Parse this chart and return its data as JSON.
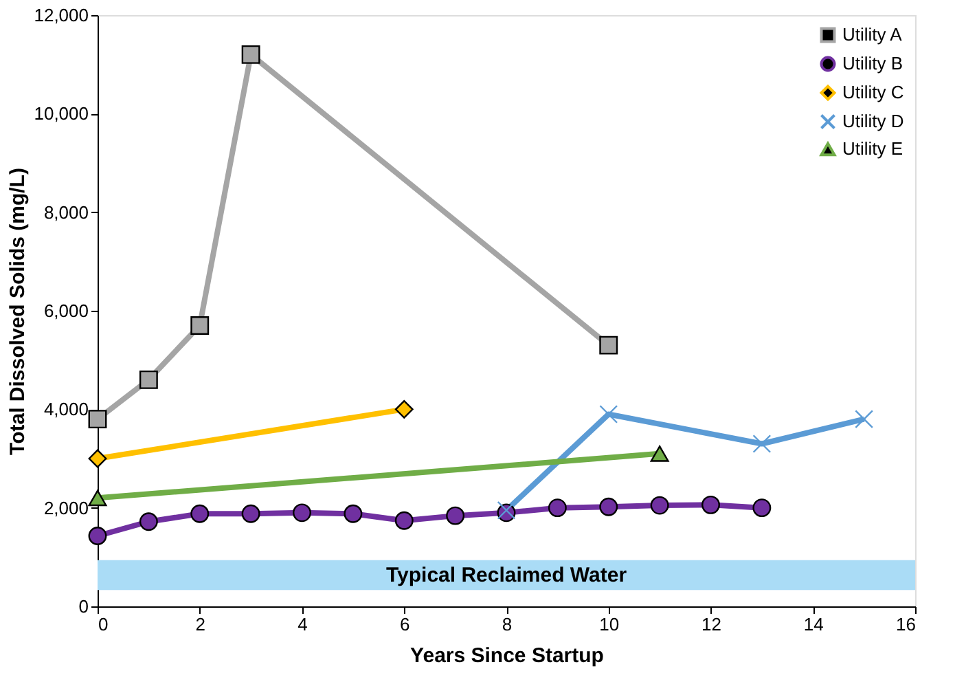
{
  "chart_data": {
    "type": "line",
    "xlabel": "Years Since Startup",
    "ylabel": "Total Dissolved Solids (mg/L)",
    "xlim": [
      0,
      16
    ],
    "xticks": [
      0,
      2,
      4,
      6,
      8,
      10,
      12,
      14,
      16
    ],
    "ylim": [
      0,
      12000
    ],
    "yticks": [
      {
        "value": 0,
        "label": "0"
      },
      {
        "value": 2000,
        "label": "2,000"
      },
      {
        "value": 4000,
        "label": "4,000"
      },
      {
        "value": 6000,
        "label": "6,000"
      },
      {
        "value": 8000,
        "label": "8,000"
      },
      {
        "value": 10000,
        "label": "10,000"
      },
      {
        "value": 12000,
        "label": "12,000"
      }
    ],
    "grid": false,
    "legend": "top right",
    "bands": [
      {
        "axis": "y",
        "from": 330,
        "to": 940,
        "label": "Typical Reclaimed Water",
        "color": "#aadcf6"
      }
    ],
    "series": [
      {
        "name": "Utility A",
        "color": "#a5a5a5",
        "marker": "square",
        "x": [
          0,
          1,
          2,
          3,
          10
        ],
        "values": [
          3800,
          4600,
          5700,
          11200,
          5300
        ]
      },
      {
        "name": "Utility B",
        "color": "#7030a0",
        "marker": "circle",
        "x": [
          0,
          1,
          2,
          3,
          4,
          5,
          6,
          7,
          8,
          9,
          10,
          11,
          12,
          13
        ],
        "values": [
          1430,
          1720,
          1880,
          1880,
          1900,
          1880,
          1740,
          1840,
          1900,
          2000,
          2020,
          2050,
          2060,
          2000
        ]
      },
      {
        "name": "Utility C",
        "color": "#ffc000",
        "marker": "diamond",
        "x": [
          0,
          6
        ],
        "values": [
          3000,
          4000
        ]
      },
      {
        "name": "Utility D",
        "color": "#5b9bd5",
        "marker": "cross",
        "x": [
          8,
          10,
          13,
          15
        ],
        "values": [
          1950,
          3900,
          3300,
          3800
        ]
      },
      {
        "name": "Utility E",
        "color": "#70ad47",
        "marker": "triangle",
        "x": [
          0,
          11
        ],
        "values": [
          2200,
          3100
        ]
      }
    ]
  }
}
